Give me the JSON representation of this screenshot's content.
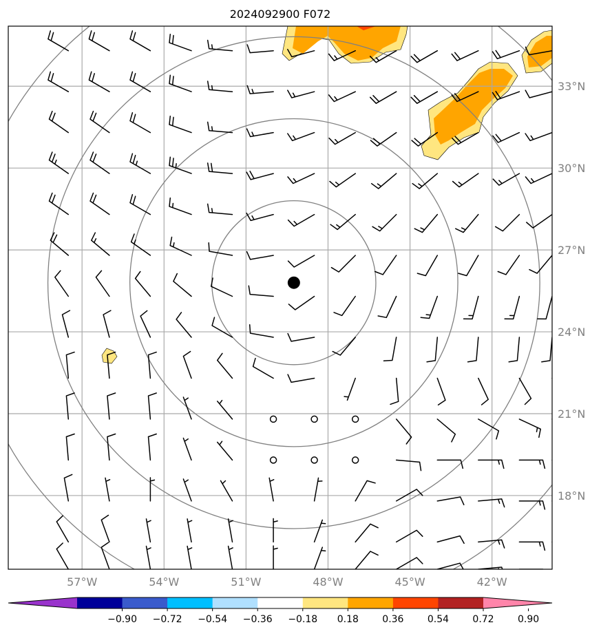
{
  "chart_data": {
    "type": "wind-barb-map",
    "title": "2024092900 F072",
    "x_axis": {
      "ticks": [
        {
          "lon": -57,
          "label": "57°W"
        },
        {
          "lon": -54,
          "label": "54°W"
        },
        {
          "lon": -51,
          "label": "51°W"
        },
        {
          "lon": -48,
          "label": "48°W"
        },
        {
          "lon": -45,
          "label": "45°W"
        },
        {
          "lon": -42,
          "label": "42°W"
        }
      ],
      "range": [
        -59.7,
        -39.8
      ]
    },
    "y_axis": {
      "ticks": [
        {
          "lat": 33,
          "label": "33°N"
        },
        {
          "lat": 30,
          "label": "30°N"
        },
        {
          "lat": 27,
          "label": "27°N"
        },
        {
          "lat": 24,
          "label": "24°N"
        },
        {
          "lat": 21,
          "label": "21°N"
        },
        {
          "lat": 18,
          "label": "18°N"
        }
      ],
      "range": [
        15.3,
        35.2
      ]
    },
    "grid": true,
    "center": {
      "lon": -49.25,
      "lat": 25.8
    },
    "range_rings_deg": [
      3,
      6,
      9,
      12
    ],
    "colorbar": {
      "orientation": "horizontal",
      "extend": "both",
      "tick_labels": [
        "−0.90",
        "−0.72",
        "−0.54",
        "−0.36",
        "−0.18",
        "0.18",
        "0.36",
        "0.54",
        "0.72",
        "0.90"
      ],
      "colors": [
        "#9933cc",
        "#000099",
        "#3a5bcc",
        "#00bfff",
        "#b0e0ff",
        "#ffffff",
        "#ffe680",
        "#ffa500",
        "#ff4500",
        "#b22222",
        "#ff85aa"
      ]
    },
    "shaded_regions": [
      {
        "name": "north-central",
        "level": "0.36-0.54"
      },
      {
        "name": "northeast",
        "level": "0.36-0.54"
      },
      {
        "name": "far-northeast",
        "level": "0.36-0.54"
      },
      {
        "name": "west-small",
        "level": "0.18-0.36"
      }
    ],
    "barbs": {
      "lons": [
        -57.5,
        -56,
        -54.5,
        -53,
        -51.5,
        -50,
        -48.5,
        -47,
        -45.5,
        -44,
        -42.5,
        -41,
        -39.8
      ],
      "lats": [
        34.3,
        32.8,
        31.3,
        29.8,
        28.3,
        26.8,
        25.3,
        23.8,
        22.3,
        20.8,
        19.3,
        17.8,
        16.3,
        15.3
      ],
      "dir_deg": [
        [
          300,
          300,
          300,
          290,
          275,
          265,
          255,
          245,
          240,
          240,
          245,
          250,
          260
        ],
        [
          300,
          300,
          300,
          290,
          275,
          265,
          255,
          245,
          240,
          240,
          245,
          250,
          255
        ],
        [
          305,
          305,
          300,
          290,
          275,
          260,
          250,
          240,
          235,
          235,
          240,
          245,
          250
        ],
        [
          305,
          305,
          300,
          290,
          275,
          255,
          245,
          235,
          230,
          230,
          235,
          240,
          245
        ],
        [
          305,
          305,
          300,
          290,
          275,
          255,
          240,
          230,
          225,
          220,
          220,
          225,
          235
        ],
        [
          310,
          310,
          305,
          295,
          280,
          260,
          240,
          225,
          215,
          210,
          210,
          215,
          220
        ],
        [
          325,
          325,
          320,
          310,
          295,
          275,
          235,
          215,
          205,
          200,
          195,
          195,
          195
        ],
        [
          345,
          345,
          335,
          320,
          300,
          280,
          260,
          220,
          190,
          185,
          185,
          185,
          185
        ],
        [
          355,
          355,
          355,
          340,
          320,
          300,
          260,
          200,
          175,
          160,
          155,
          150,
          150
        ],
        [
          355,
          355,
          355,
          340,
          320,
          0,
          0,
          0,
          140,
          130,
          120,
          115,
          110
        ],
        [
          355,
          355,
          355,
          340,
          320,
          0,
          0,
          0,
          95,
          90,
          90,
          90,
          90
        ],
        [
          350,
          350,
          0,
          340,
          330,
          350,
          10,
          30,
          60,
          80,
          85,
          90,
          90
        ],
        [
          330,
          340,
          350,
          350,
          350,
          0,
          20,
          40,
          60,
          75,
          85,
          90,
          90
        ],
        [
          330,
          340,
          350,
          350,
          350,
          0,
          20,
          40,
          60,
          75,
          85,
          90,
          90
        ]
      ],
      "speed_kt": [
        [
          20,
          20,
          20,
          20,
          15,
          10,
          10,
          15,
          15,
          20,
          20,
          20,
          10
        ],
        [
          20,
          20,
          20,
          20,
          15,
          15,
          15,
          15,
          20,
          20,
          20,
          20,
          10
        ],
        [
          20,
          20,
          20,
          20,
          15,
          15,
          15,
          15,
          20,
          20,
          20,
          20,
          15
        ],
        [
          25,
          20,
          25,
          25,
          20,
          20,
          15,
          15,
          15,
          15,
          15,
          15,
          15
        ],
        [
          20,
          20,
          20,
          15,
          15,
          15,
          15,
          15,
          15,
          15,
          15,
          10,
          10
        ],
        [
          20,
          15,
          15,
          15,
          10,
          10,
          10,
          10,
          10,
          10,
          10,
          10,
          10
        ],
        [
          10,
          10,
          10,
          10,
          10,
          10,
          10,
          10,
          10,
          15,
          15,
          15,
          10
        ],
        [
          10,
          10,
          10,
          10,
          10,
          10,
          10,
          10,
          10,
          10,
          10,
          10,
          10
        ],
        [
          10,
          10,
          10,
          10,
          10,
          10,
          10,
          5,
          10,
          10,
          10,
          10,
          10
        ],
        [
          10,
          10,
          10,
          5,
          5,
          0,
          0,
          0,
          10,
          10,
          10,
          15,
          10
        ],
        [
          10,
          10,
          10,
          5,
          5,
          0,
          0,
          0,
          10,
          10,
          15,
          15,
          10
        ],
        [
          10,
          5,
          5,
          5,
          5,
          5,
          5,
          10,
          10,
          10,
          15,
          15,
          10
        ],
        [
          10,
          10,
          5,
          5,
          5,
          5,
          5,
          10,
          10,
          10,
          15,
          15,
          10
        ],
        [
          10,
          10,
          5,
          5,
          5,
          5,
          5,
          10,
          10,
          10,
          15,
          15,
          10
        ]
      ]
    }
  }
}
